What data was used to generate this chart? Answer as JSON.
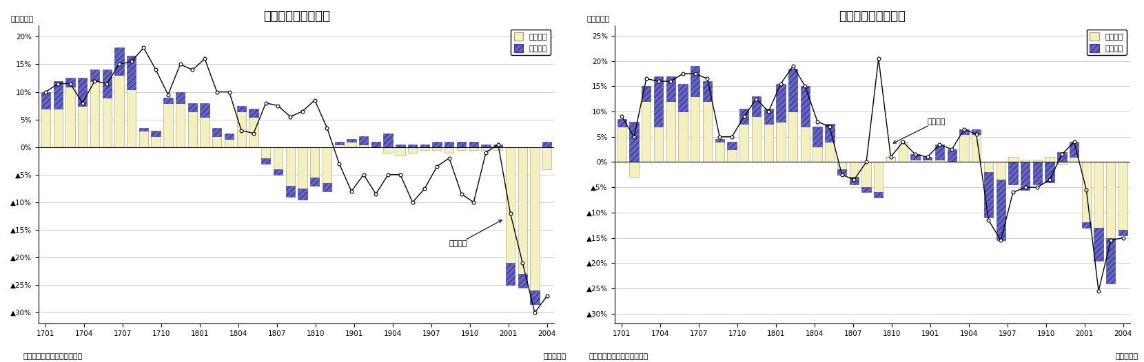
{
  "export_title": "輸出金額の要因分解",
  "import_title": "輸入金額の要因分解",
  "yaxis_label": "（前年比）",
  "xaxis_label": "（年・月）",
  "source_label": "（資料）財務省「貿易統計」",
  "legend_quantity": "数量要因",
  "legend_price": "価格要因",
  "export_line_label": "輸出金額",
  "import_line_label": "輸入金額",
  "xtick_labels": [
    "1701",
    "1704",
    "1707",
    "1710",
    "1801",
    "1804",
    "1807",
    "1810",
    "1901",
    "1904",
    "1907",
    "1910",
    "2001",
    "2004"
  ],
  "export_quantity": [
    7.0,
    7.0,
    11.0,
    7.5,
    12.0,
    9.0,
    13.0,
    10.5,
    3.0,
    2.0,
    8.0,
    8.0,
    6.5,
    5.5,
    2.0,
    1.5,
    6.5,
    5.5,
    -2.0,
    -4.0,
    -7.0,
    -7.5,
    -5.5,
    -6.5,
    0.5,
    1.0,
    0.5,
    0.0,
    -1.0,
    -1.5,
    -1.0,
    -0.5,
    -0.5,
    -1.0,
    -0.5,
    -0.5,
    -0.5,
    -0.5,
    -21.0,
    -23.0,
    -26.0,
    -4.0
  ],
  "export_price": [
    3.0,
    5.0,
    1.5,
    5.0,
    2.0,
    5.0,
    5.0,
    6.0,
    0.5,
    1.0,
    1.0,
    2.0,
    1.5,
    2.5,
    1.5,
    1.0,
    1.0,
    1.5,
    -1.0,
    -1.0,
    -2.0,
    -2.0,
    -1.5,
    -1.5,
    0.5,
    0.5,
    1.5,
    1.0,
    2.5,
    0.5,
    0.5,
    0.5,
    1.0,
    1.0,
    1.0,
    1.0,
    0.5,
    0.5,
    -4.0,
    -2.5,
    -2.5,
    1.0
  ],
  "export_line": [
    10.0,
    11.5,
    11.5,
    8.0,
    12.0,
    11.5,
    15.0,
    15.5,
    18.0,
    14.0,
    9.5,
    15.0,
    14.0,
    16.0,
    10.0,
    10.0,
    3.0,
    2.5,
    8.0,
    7.5,
    5.5,
    6.5,
    8.5,
    3.5,
    -3.0,
    -8.0,
    -5.0,
    -8.5,
    -5.0,
    -5.0,
    -10.0,
    -7.5,
    -3.5,
    -2.0,
    -8.5,
    -10.0,
    -1.0,
    0.5,
    -12.0,
    -21.0,
    -30.0,
    -27.0
  ],
  "import_quantity": [
    7.0,
    -3.0,
    12.0,
    7.0,
    12.0,
    10.0,
    13.0,
    12.0,
    4.0,
    2.5,
    7.5,
    9.0,
    7.5,
    8.0,
    10.0,
    7.0,
    3.0,
    4.0,
    -1.5,
    -3.0,
    -5.0,
    -6.0,
    1.0,
    4.0,
    0.5,
    0.5,
    0.5,
    0.0,
    5.5,
    5.5,
    -2.0,
    -3.5,
    1.0,
    0.5,
    0.5,
    1.0,
    -0.5,
    1.0,
    -12.0,
    -13.0,
    -15.0,
    -13.5
  ],
  "import_price": [
    1.5,
    8.0,
    3.0,
    10.0,
    5.0,
    5.5,
    6.0,
    4.0,
    0.5,
    1.5,
    3.0,
    4.0,
    3.0,
    7.5,
    8.5,
    8.0,
    4.0,
    3.5,
    -1.0,
    -1.5,
    -1.0,
    -1.0,
    0.0,
    0.0,
    1.0,
    0.5,
    3.0,
    2.5,
    1.0,
    1.0,
    -9.0,
    -12.0,
    -4.5,
    -5.5,
    -4.5,
    -4.0,
    2.0,
    3.0,
    -1.0,
    -6.5,
    -9.0,
    -1.0
  ],
  "import_line": [
    9.0,
    5.0,
    16.5,
    16.0,
    16.0,
    17.5,
    17.5,
    16.5,
    5.0,
    5.0,
    9.0,
    12.5,
    10.0,
    15.5,
    19.0,
    15.0,
    8.0,
    7.0,
    -2.5,
    -3.5,
    0.0,
    20.5,
    1.0,
    4.0,
    1.5,
    1.0,
    3.5,
    2.5,
    6.5,
    5.5,
    -11.5,
    -15.5,
    -6.0,
    -5.0,
    -5.0,
    -3.5,
    1.5,
    4.0,
    -5.5,
    -25.5,
    -15.5,
    -15.0
  ],
  "export_ylim": [
    -32,
    22
  ],
  "import_ylim": [
    -32,
    27
  ],
  "export_yticks": [
    20,
    15,
    10,
    5,
    0,
    -5,
    -10,
    -15,
    -20,
    -25,
    -30
  ],
  "import_yticks": [
    25,
    20,
    15,
    10,
    5,
    0,
    -5,
    -10,
    -15,
    -20,
    -25,
    -30
  ],
  "bar_quantity_color": "#f5f0c0",
  "bar_quantity_edgecolor": "#999966",
  "bar_price_color": "#6666bb",
  "bar_price_hatch": "////",
  "bar_price_edgecolor": "#3333aa",
  "line_color": "#000000",
  "line_marker": "o",
  "line_marker_facecolor": "#ffffff",
  "background_color": "#ffffff",
  "grid_color": "#bbbbbb",
  "title_fontsize": 13,
  "label_fontsize": 8,
  "tick_fontsize": 7.5,
  "annotation_fontsize": 8
}
